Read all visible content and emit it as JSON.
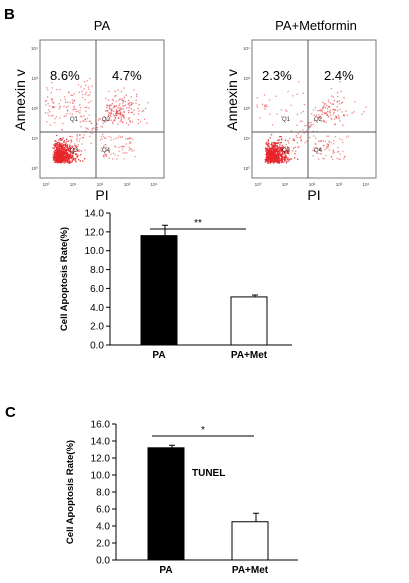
{
  "panel_b": {
    "label": "B"
  },
  "panel_c": {
    "label": "C"
  },
  "chart_data": [
    {
      "id": "flow_pa",
      "type": "scatter",
      "title": "PA",
      "xlabel": "PI",
      "ylabel": "Annexin v",
      "quadrant_percent": {
        "Q1": "8.6%",
        "Q2": "4.7%"
      },
      "quadrant_labels": [
        "Q1",
        "Q2",
        "Q3",
        "Q4"
      ],
      "x_tick_labels": [
        "10⁰",
        "10¹",
        "10²",
        "10³",
        "10⁴"
      ],
      "y_tick_labels": [
        "10⁴",
        "10³",
        "10²",
        "10¹",
        "10⁰"
      ],
      "point_color": "#e8262b"
    },
    {
      "id": "flow_pa_met",
      "type": "scatter",
      "title": "PA+Metformin",
      "xlabel": "PI",
      "ylabel": "Annexin v",
      "quadrant_percent": {
        "Q1": "2.3%",
        "Q2": "2.4%"
      },
      "quadrant_labels": [
        "Q1",
        "Q2",
        "Q3",
        "Q4"
      ],
      "x_tick_labels": [
        "10⁰",
        "10¹",
        "10²",
        "10³",
        "10⁴"
      ],
      "y_tick_labels": [
        "10⁴",
        "10³",
        "10²",
        "10¹",
        "10⁰"
      ],
      "point_color": "#e8262b"
    },
    {
      "id": "bar_b",
      "type": "bar",
      "categories": [
        "PA",
        "PA+Met"
      ],
      "values": [
        11.6,
        5.1
      ],
      "errors": [
        1.1,
        0.2
      ],
      "bar_fills": [
        "#000000",
        "#ffffff"
      ],
      "ylabel": "Cell Apoptosis Rate(%)",
      "ylim": [
        0,
        14
      ],
      "y_ticks": [
        0,
        2,
        4,
        6,
        8,
        10,
        12,
        14
      ],
      "y_tick_labels": [
        "0.0",
        "2.0",
        "4.0",
        "6.0",
        "8.0",
        "10.0",
        "12.0",
        "14.0"
      ],
      "significance": "**",
      "annotation": ""
    },
    {
      "id": "bar_c",
      "type": "bar",
      "categories": [
        "PA",
        "PA+Met"
      ],
      "values": [
        13.2,
        4.5
      ],
      "errors": [
        0.3,
        1.0
      ],
      "bar_fills": [
        "#000000",
        "#ffffff"
      ],
      "ylabel": "Cell Apoptosis Rate(%)",
      "ylim": [
        0,
        16
      ],
      "y_ticks": [
        0,
        2,
        4,
        6,
        8,
        10,
        12,
        14,
        16
      ],
      "y_tick_labels": [
        "0.0",
        "2.0",
        "4.0",
        "6.0",
        "8.0",
        "10.0",
        "12.0",
        "14.0",
        "16.0"
      ],
      "significance": "*",
      "annotation": "TUNEL"
    }
  ]
}
